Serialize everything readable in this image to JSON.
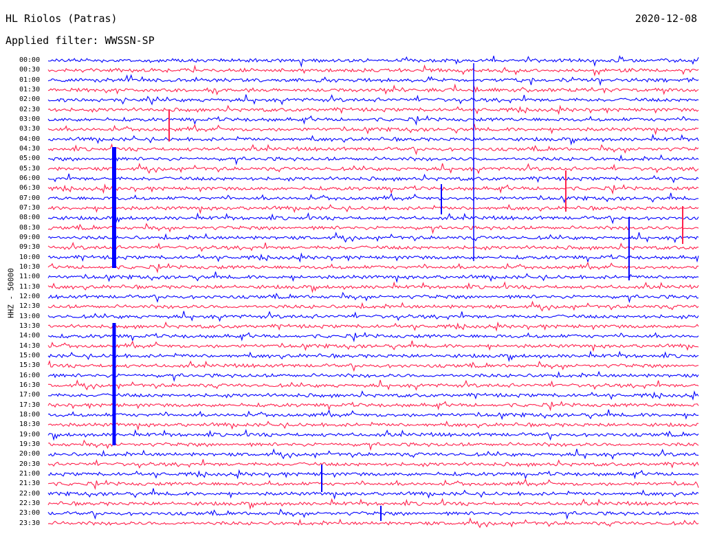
{
  "header": {
    "station": "HL Riolos (Patras)",
    "filter": "Applied filter: WWSSN-SP",
    "date": "2020-12-08"
  },
  "channel_label": "HHZ - 50000",
  "colors": {
    "odd_trace": "#0000ff",
    "even_trace": "#ff1f4b"
  },
  "time_labels": [
    "00:00",
    "00:30",
    "01:00",
    "01:30",
    "02:00",
    "02:30",
    "03:00",
    "03:30",
    "04:00",
    "04:30",
    "05:00",
    "05:30",
    "06:00",
    "06:30",
    "07:00",
    "07:30",
    "08:00",
    "08:30",
    "09:00",
    "09:30",
    "10:00",
    "10:30",
    "11:00",
    "11:30",
    "12:00",
    "12:30",
    "13:00",
    "13:30",
    "14:00",
    "14:30",
    "15:00",
    "15:30",
    "16:00",
    "16:30",
    "17:00",
    "17:30",
    "18:00",
    "18:30",
    "19:00",
    "19:30",
    "20:00",
    "20:30",
    "21:00",
    "21:30",
    "22:00",
    "22:30",
    "23:00",
    "23:30"
  ]
}
